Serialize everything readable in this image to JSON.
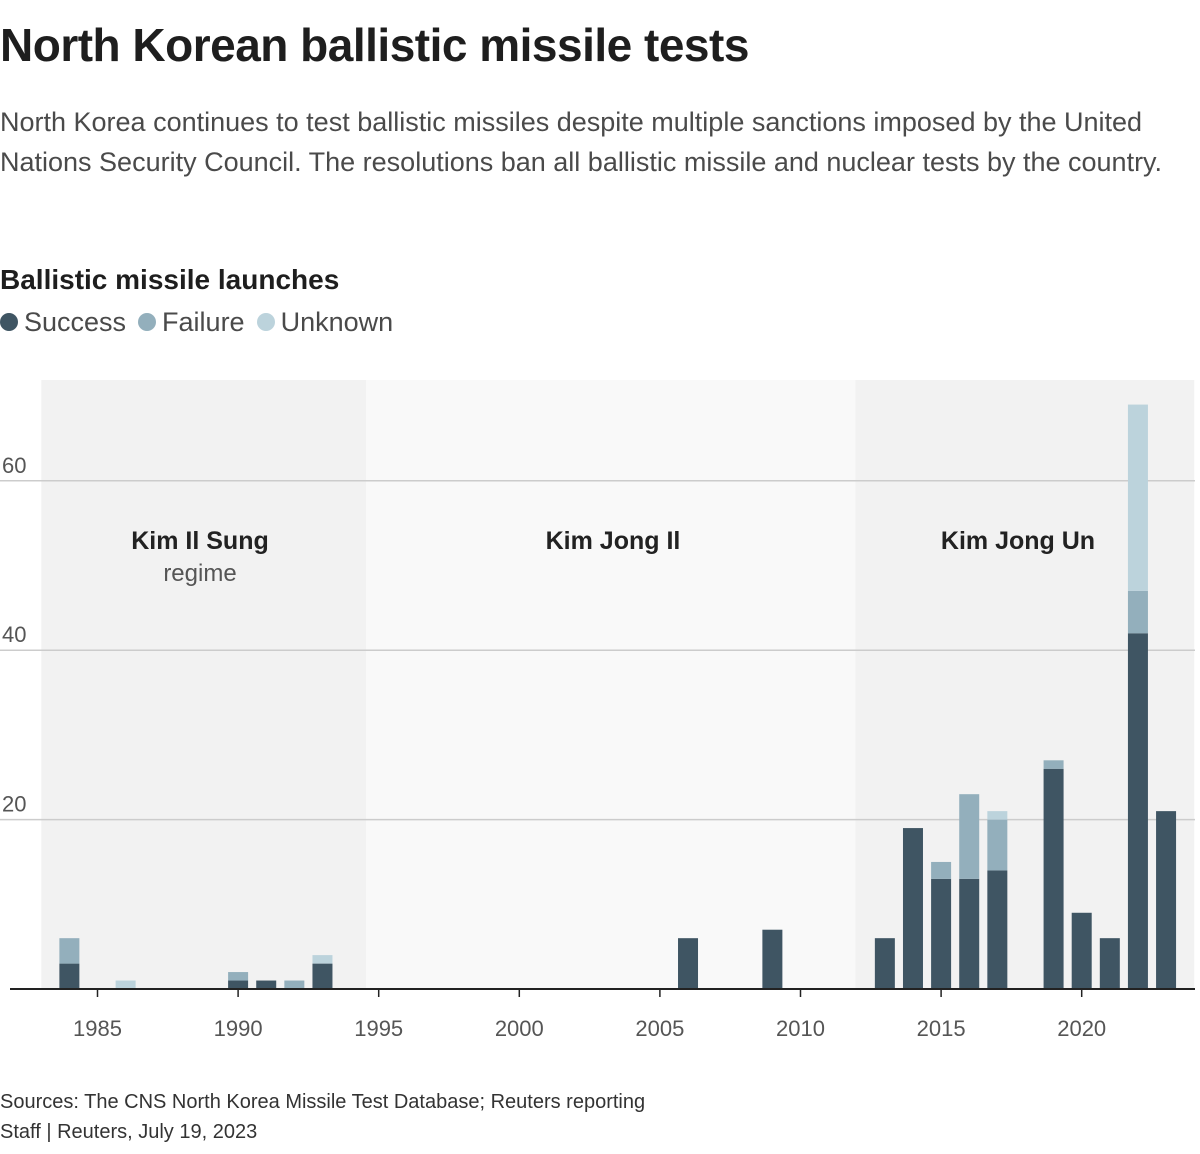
{
  "header": {
    "title": "North Korean ballistic missile tests",
    "subtitle": "North Korea continues to test ballistic missiles despite multiple sanctions imposed by the United Nations Security Council. The resolutions ban all ballistic missile and nuclear tests by the country."
  },
  "chart_title": "Ballistic missile launches",
  "legend": {
    "success": "Success",
    "failure": "Failure",
    "unknown": "Unknown"
  },
  "colors": {
    "success": "#3f5563",
    "failure": "#93afbc",
    "unknown": "#bcd3dc",
    "band_dark": "#f2f2f2",
    "band_light": "#f9f9f9",
    "grid": "#cccccc",
    "axis": "#222222"
  },
  "chart_data": {
    "type": "bar",
    "stacked": true,
    "title": "Ballistic missile launches",
    "xlabel": "",
    "ylabel": "",
    "xlim": [
      1983,
      2024
    ],
    "ylim": [
      0,
      72
    ],
    "y_ticks": [
      20,
      40,
      60
    ],
    "x_ticks": [
      1985,
      1990,
      1995,
      2000,
      2005,
      2010,
      2015,
      2020
    ],
    "grid": true,
    "legend_position": "top-left",
    "series": [
      {
        "key": "success",
        "name": "Success",
        "color": "#3f5563",
        "data": {
          "1984": 3,
          "1990": 1,
          "1991": 1,
          "1993": 3,
          "2006": 6,
          "2009": 7,
          "2013": 6,
          "2014": 19,
          "2015": 13,
          "2016": 13,
          "2017": 14,
          "2019": 26,
          "2020": 9,
          "2021": 6,
          "2022": 42,
          "2023": 21
        }
      },
      {
        "key": "failure",
        "name": "Failure",
        "color": "#93afbc",
        "data": {
          "1984": 3,
          "1990": 1,
          "1992": 1,
          "2015": 2,
          "2016": 10,
          "2017": 6,
          "2019": 1,
          "2022": 5
        }
      },
      {
        "key": "unknown",
        "name": "Unknown",
        "color": "#bcd3dc",
        "data": {
          "1986": 1,
          "1993": 1,
          "2017": 1,
          "2022": 22
        }
      }
    ],
    "regimes": [
      {
        "name": "Kim Il Sung",
        "sublabel": "regime",
        "start": 1983,
        "end": 1994.55,
        "shade": "dark"
      },
      {
        "name": "Kim Jong Il",
        "sublabel": "",
        "start": 1994.55,
        "end": 2011.95,
        "shade": "light"
      },
      {
        "name": "Kim Jong Un",
        "sublabel": "",
        "start": 2011.95,
        "end": 2024,
        "shade": "dark"
      }
    ]
  },
  "footer": {
    "sources": "Sources: The CNS North Korea Missile Test Database; Reuters reporting",
    "credit": "Staff | Reuters, July 19, 2023"
  }
}
